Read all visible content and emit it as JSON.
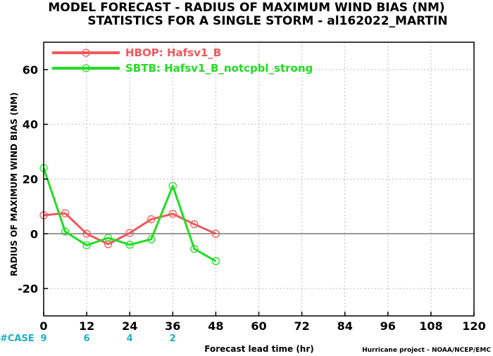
{
  "chart_data": {
    "type": "line",
    "title_lines": [
      "MODEL FORECAST - RADIUS OF MAXIMUM WIND BIAS (NM)",
      "STATISTICS FOR A SINGLE STORM - al162022_MARTIN"
    ],
    "xlabel": "Forecast lead time (hr)",
    "ylabel": "RADIUS OF MAXIMUM WIND BIAS (NM)",
    "xlim": [
      0,
      120
    ],
    "ylim": [
      -30,
      70
    ],
    "x_ticks": [
      "0",
      "12",
      "24",
      "36",
      "48",
      "60",
      "72",
      "84",
      "96",
      "108",
      "120"
    ],
    "y_ticks": [
      "60",
      "40",
      "20",
      "0",
      "-20"
    ],
    "grid": true,
    "legend_position": "top-left",
    "series": [
      {
        "name": "HBOP: Hafsv1_B",
        "color": "#f0585a",
        "x": [
          0,
          6,
          12,
          18,
          24,
          30,
          36,
          42,
          48
        ],
        "y": [
          6.8,
          7.5,
          0.0,
          -3.8,
          0.3,
          5.3,
          7.3,
          3.5,
          0.0
        ]
      },
      {
        "name": "SBTB: Hafsv1_B_notcpbl_strong",
        "color": "#22dd22",
        "x": [
          0,
          6,
          12,
          18,
          24,
          30,
          36,
          42,
          48
        ],
        "y": [
          24.0,
          0.8,
          -4.2,
          -1.5,
          -4.0,
          -2.0,
          17.5,
          -5.5,
          -10.0
        ]
      }
    ],
    "cases": {
      "label": "#CASE",
      "x": [
        0,
        12,
        24,
        36
      ],
      "values": [
        "9",
        "6",
        "4",
        "2"
      ]
    },
    "credit": "Hurricane project - NOAA/NCEP/EMC"
  }
}
